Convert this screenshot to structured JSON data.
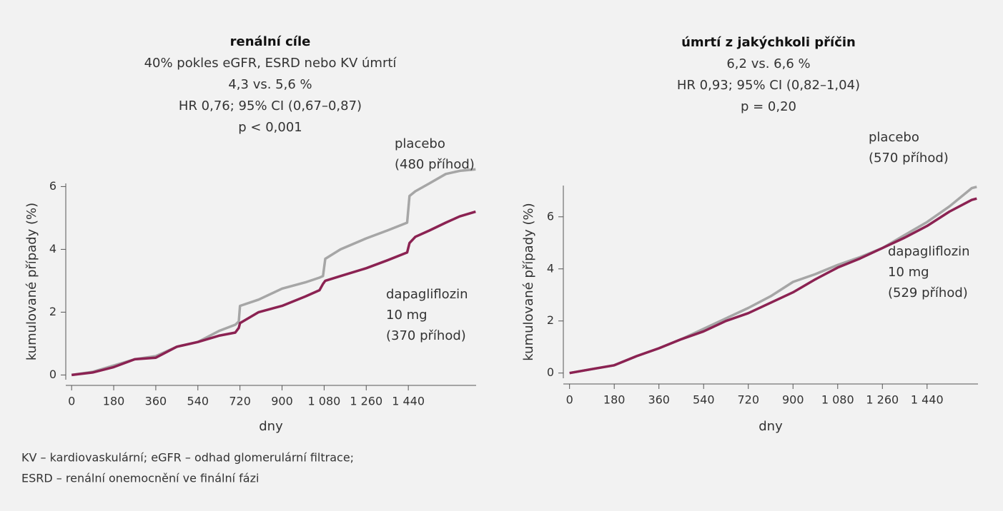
{
  "chart_data": [
    {
      "type": "line",
      "title": "renální cíle",
      "subtitle": [
        "40% pokles eGFR, ESRD nebo KV úmrtí",
        "4,3 vs. 5,6 %",
        "HR 0,76; 95% CI (0,67–0,87)",
        "p < 0,001"
      ],
      "xlabel": "dny",
      "ylabel": "kumulované případy (%)",
      "x": [
        0,
        90,
        180,
        270,
        360,
        450,
        540,
        630,
        700,
        715,
        720,
        800,
        900,
        1000,
        1060,
        1075,
        1085,
        1150,
        1260,
        1350,
        1435,
        1445,
        1470,
        1530,
        1600,
        1660,
        1728
      ],
      "series": [
        {
          "name": "placebo",
          "color": "#a6a6a6",
          "values": [
            0,
            0.1,
            0.3,
            0.5,
            0.6,
            0.9,
            1.05,
            1.4,
            1.6,
            1.7,
            2.2,
            2.4,
            2.75,
            2.95,
            3.1,
            3.15,
            3.7,
            4.0,
            4.35,
            4.6,
            4.85,
            5.7,
            5.85,
            6.1,
            6.4,
            6.5,
            6.55
          ]
        },
        {
          "name": "dapagliflozin",
          "color": "#8b2252",
          "values": [
            0,
            0.08,
            0.25,
            0.5,
            0.55,
            0.9,
            1.05,
            1.25,
            1.35,
            1.5,
            1.65,
            2.0,
            2.2,
            2.5,
            2.7,
            2.9,
            3.0,
            3.15,
            3.4,
            3.65,
            3.9,
            4.2,
            4.4,
            4.6,
            4.85,
            5.05,
            5.2
          ]
        }
      ],
      "annotations": [
        [
          "placebo",
          "(480 příhod)"
        ],
        [
          "dapagliflozin",
          "10 mg",
          "(370 příhod)"
        ]
      ],
      "xlim": [
        -25,
        1730
      ],
      "ylim": [
        -0.15,
        6.1
      ],
      "xticks": [
        0,
        180,
        360,
        540,
        720,
        900,
        {
          "value": 1080,
          "label": "1 080"
        },
        {
          "value": 1260,
          "label": "1 260"
        },
        {
          "value": 1440,
          "label": "1 440"
        }
      ],
      "yticks": [
        0,
        2,
        4,
        6
      ]
    },
    {
      "type": "line",
      "title": "úmrtí z jakýchkoli příčin",
      "subtitle": [
        "6,2 vs. 6,6 %",
        "HR 0,93; 95% CI (0,82–1,04)",
        "p = 0,20"
      ],
      "xlabel": "dny",
      "ylabel": "kumulované případy (%)",
      "x": [
        0,
        90,
        180,
        270,
        360,
        450,
        540,
        630,
        720,
        810,
        900,
        990,
        1080,
        1170,
        1260,
        1350,
        1440,
        1530,
        1620,
        1640
      ],
      "series": [
        {
          "name": "placebo",
          "color": "#a6a6a6",
          "values": [
            0,
            0.15,
            0.3,
            0.65,
            0.95,
            1.3,
            1.7,
            2.1,
            2.5,
            2.95,
            3.5,
            3.8,
            4.15,
            4.45,
            4.8,
            5.3,
            5.8,
            6.4,
            7.1,
            7.15
          ]
        },
        {
          "name": "dapagliflozin",
          "color": "#8b2252",
          "values": [
            0,
            0.15,
            0.3,
            0.65,
            0.95,
            1.3,
            1.6,
            2.0,
            2.3,
            2.7,
            3.1,
            3.6,
            4.05,
            4.4,
            4.8,
            5.2,
            5.65,
            6.2,
            6.65,
            6.7
          ]
        }
      ],
      "annotations": [
        [
          "placebo",
          "(570 příhod)"
        ],
        [
          "dapagliflozin",
          "10 mg",
          "(529 příhod)"
        ]
      ],
      "xlim": [
        -25,
        1645
      ],
      "ylim": [
        -0.2,
        7.2
      ],
      "xticks": [
        0,
        180,
        360,
        540,
        720,
        900,
        {
          "value": 1080,
          "label": "1 080"
        },
        {
          "value": 1260,
          "label": "1 260"
        },
        {
          "value": 1440,
          "label": "1 440"
        }
      ],
      "yticks": [
        0,
        2,
        4,
        6
      ]
    }
  ],
  "footnote": [
    "KV – kardiovaskulární; eGFR – odhad glomerulární filtrace;",
    "ESRD – renální onemocnění ve finální fázi"
  ]
}
